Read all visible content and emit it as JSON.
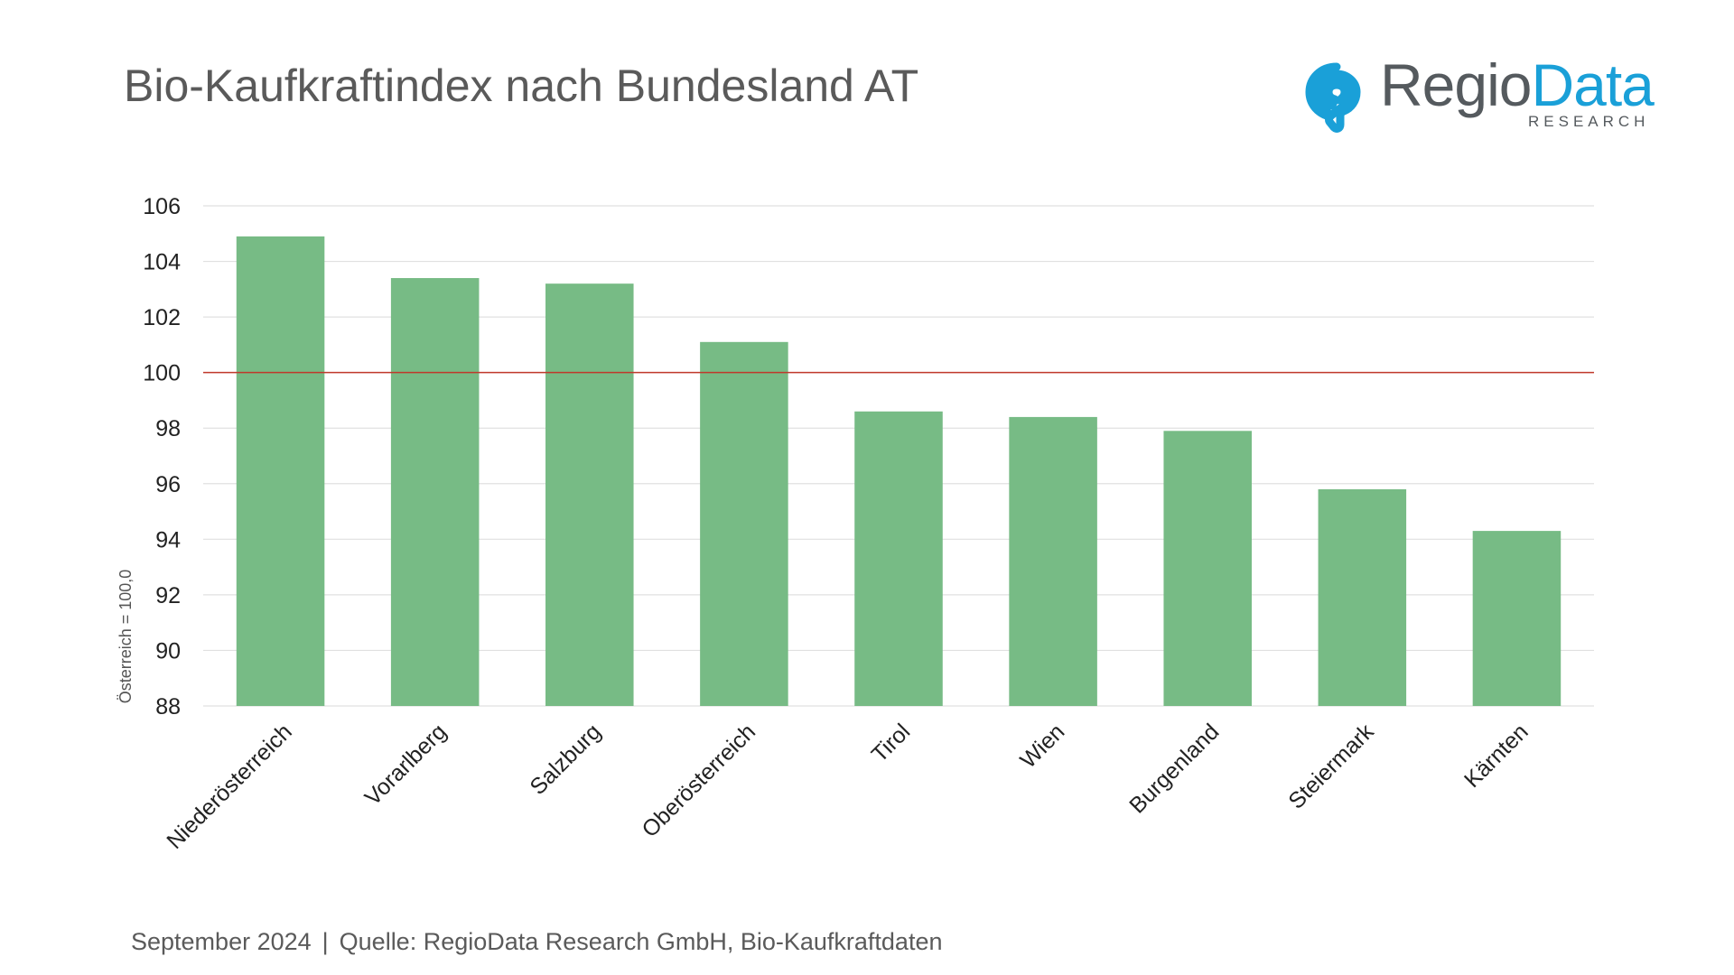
{
  "header": {
    "title": "Bio-Kaufkraftindex nach Bundesland AT"
  },
  "logo": {
    "word1": "Regio",
    "word2": "Data",
    "subline": "RESEARCH",
    "pin_icon": "location-pin-icon",
    "colors": {
      "pin": "#1aa0d8",
      "text": "#555a5e"
    }
  },
  "footer": {
    "date": "September 2024",
    "separator": "|",
    "source": "Quelle: RegioData Research GmbH, Bio-Kaufkraftdaten"
  },
  "chart_data": {
    "type": "bar",
    "title": "",
    "xlabel": "",
    "ylabel": "Österreich = 100,0",
    "categories": [
      "Niederösterreich",
      "Vorarlberg",
      "Salzburg",
      "Oberösterreich",
      "Tirol",
      "Wien",
      "Burgenland",
      "Steiermark",
      "Kärnten"
    ],
    "values": [
      104.9,
      103.4,
      103.2,
      101.1,
      98.6,
      98.4,
      97.9,
      95.8,
      94.3
    ],
    "ylim": [
      88,
      106
    ],
    "yticks": [
      88,
      90,
      92,
      94,
      96,
      98,
      100,
      102,
      104,
      106
    ],
    "reference_line": {
      "value": 100,
      "color": "#c0392b"
    },
    "grid": true,
    "legend": "none",
    "colors": {
      "bar": "#77bb85",
      "grid": "#e0e0e0",
      "tick_text": "#222222"
    }
  }
}
